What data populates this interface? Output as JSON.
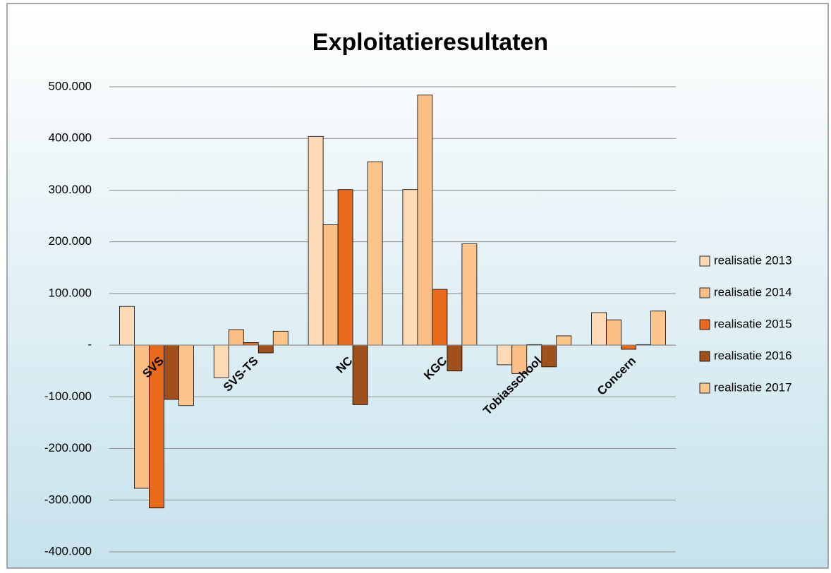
{
  "chart_data": {
    "type": "bar",
    "title": "Exploitatieresultaten",
    "categories": [
      "SVS",
      "SVS-TS",
      "NC",
      "KGC",
      "Tobiasschool",
      "Concern"
    ],
    "series": [
      {
        "name": "realisatie 2013",
        "color": "#fdd9b5",
        "values": [
          75000,
          -63000,
          404000,
          301000,
          -38000,
          63000
        ]
      },
      {
        "name": "realisatie 2014",
        "color": "#fbbf85",
        "values": [
          -277000,
          30000,
          233000,
          484000,
          -55000,
          49000
        ]
      },
      {
        "name": "realisatie 2015",
        "color": "#e86a1a",
        "values": [
          -315000,
          5000,
          301000,
          108000,
          1000,
          -8000
        ]
      },
      {
        "name": "realisatie 2016",
        "color": "#a0501a",
        "values": [
          -105000,
          -15000,
          -115000,
          -50000,
          -42000,
          1000
        ]
      },
      {
        "name": "realisatie 2017",
        "color": "#fbc58c",
        "values": [
          -117000,
          27000,
          355000,
          196000,
          18000,
          66000
        ]
      }
    ],
    "ylim": [
      -400000,
      500000
    ],
    "yticks": [
      {
        "value": -400000,
        "label": "-400.000"
      },
      {
        "value": -300000,
        "label": "-300.000"
      },
      {
        "value": -200000,
        "label": "-200.000"
      },
      {
        "value": -100000,
        "label": "-100.000"
      },
      {
        "value": 0,
        "label": "-"
      },
      {
        "value": 100000,
        "label": "100.000"
      },
      {
        "value": 200000,
        "label": "200.000"
      },
      {
        "value": 300000,
        "label": "300.000"
      },
      {
        "value": 400000,
        "label": "400.000"
      },
      {
        "value": 500000,
        "label": "500.000"
      }
    ],
    "grid": true,
    "legend": "right"
  }
}
